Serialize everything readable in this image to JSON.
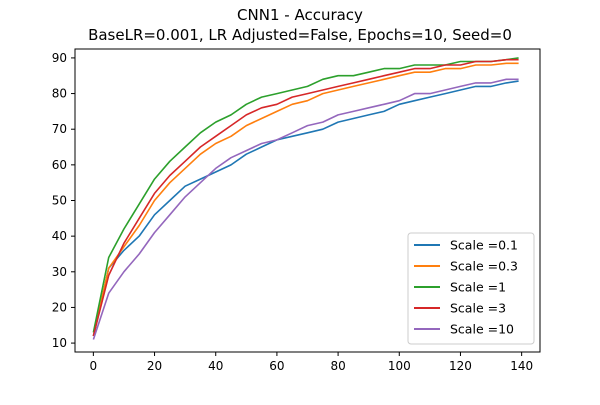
{
  "chart_data": {
    "type": "line",
    "title": "CNN1 - Accuracy",
    "subtitle": "BaseLR=0.001, LR Adjusted=False, Epochs=10, Seed=0",
    "xlabel": "",
    "ylabel": "",
    "xlim": [
      -6,
      146
    ],
    "ylim": [
      7.5,
      92.5
    ],
    "xticks": [
      0,
      20,
      40,
      60,
      80,
      100,
      120,
      140
    ],
    "yticks": [
      10,
      20,
      30,
      40,
      50,
      60,
      70,
      80,
      90
    ],
    "grid": false,
    "legend_position": "lower-right",
    "x": [
      0,
      5,
      10,
      15,
      20,
      25,
      30,
      35,
      40,
      45,
      50,
      55,
      60,
      65,
      70,
      75,
      80,
      85,
      90,
      95,
      100,
      105,
      110,
      115,
      120,
      125,
      130,
      135,
      139
    ],
    "series": [
      {
        "name": "Scale =0.1",
        "color": "#1f77b4",
        "values": [
          12,
          31,
          36,
          40,
          46,
          50,
          54,
          56,
          58,
          60,
          63,
          65,
          67,
          68,
          69,
          70,
          72,
          73,
          74,
          75,
          77,
          78,
          79,
          80,
          81,
          82,
          82,
          83,
          83.5
        ]
      },
      {
        "name": "Scale =0.3",
        "color": "#ff7f0e",
        "values": [
          12,
          31,
          37,
          43,
          50,
          55,
          59,
          63,
          66,
          68,
          71,
          73,
          75,
          77,
          78,
          80,
          81,
          82,
          83,
          84,
          85,
          86,
          86,
          87,
          87,
          88,
          88,
          88.5,
          88.5
        ]
      },
      {
        "name": "Scale =1",
        "color": "#2ca02c",
        "values": [
          13,
          34,
          42,
          49,
          56,
          61,
          65,
          69,
          72,
          74,
          77,
          79,
          80,
          81,
          82,
          84,
          85,
          85,
          86,
          87,
          87,
          88,
          88,
          88,
          89,
          89,
          89,
          89.5,
          90
        ]
      },
      {
        "name": "Scale =3",
        "color": "#d62728",
        "values": [
          12,
          29,
          38,
          45,
          52,
          57,
          61,
          65,
          68,
          71,
          74,
          76,
          77,
          79,
          80,
          81,
          82,
          83,
          84,
          85,
          86,
          87,
          87,
          88,
          88,
          89,
          89,
          89.5,
          89.5
        ]
      },
      {
        "name": "Scale =10",
        "color": "#9467bd",
        "values": [
          11,
          24,
          30,
          35,
          41,
          46,
          51,
          55,
          59,
          62,
          64,
          66,
          67,
          69,
          71,
          72,
          74,
          75,
          76,
          77,
          78,
          80,
          80,
          81,
          82,
          83,
          83,
          84,
          84
        ]
      }
    ]
  }
}
